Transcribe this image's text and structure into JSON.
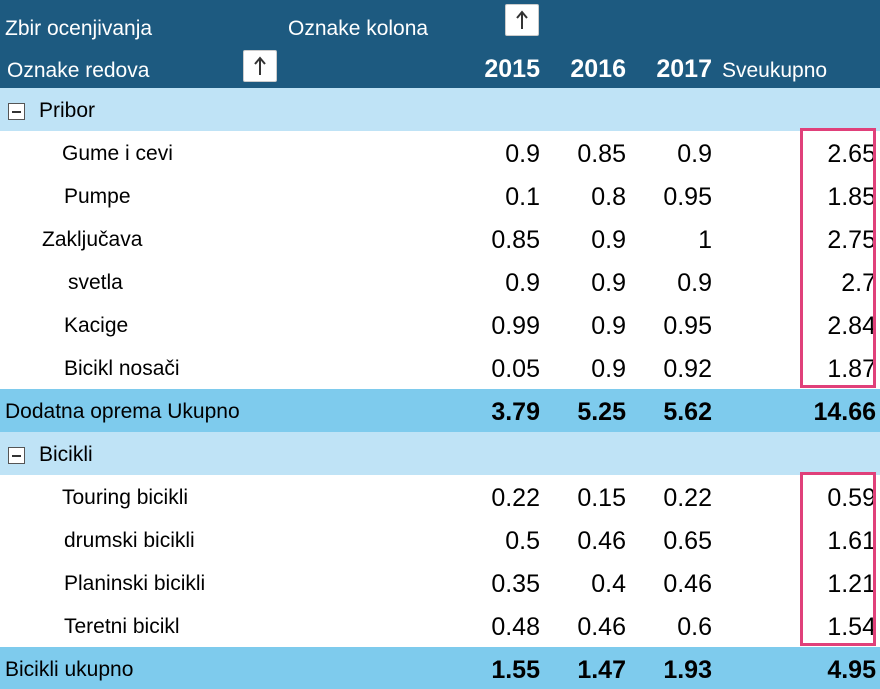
{
  "header": {
    "value_label": "Zbir ocenjivanja",
    "column_labels": "Oznake kolona",
    "row_labels": "Oznake redova",
    "years": [
      "2015",
      "2016",
      "2017"
    ],
    "grand_total": "Sveukupno"
  },
  "groups": [
    {
      "name": "Pribor",
      "rows": [
        {
          "label": "Gume i cevi",
          "values": [
            "0.9",
            "0.85",
            "0.9"
          ],
          "total": "2.65"
        },
        {
          "label": "Pumpe",
          "values": [
            "0.1",
            "0.8",
            "0.95"
          ],
          "total": "1.85"
        },
        {
          "label": "Zaključava",
          "values": [
            "0.85",
            "0.9",
            "1"
          ],
          "total": "2.75"
        },
        {
          "label": "svetla",
          "values": [
            "0.9",
            "0.9",
            "0.9"
          ],
          "total": "2.7"
        },
        {
          "label": "Kacige",
          "values": [
            "0.99",
            "0.9",
            "0.95"
          ],
          "total": "2.84"
        },
        {
          "label": "Bicikl nosači",
          "values": [
            "0.05",
            "0.9",
            "0.92"
          ],
          "total": "1.87"
        }
      ],
      "subtotal": {
        "label": "Dodatna oprema Ukupno",
        "values": [
          "3.79",
          "5.25",
          "5.62"
        ],
        "total": "14.66"
      }
    },
    {
      "name": "Bicikli",
      "rows": [
        {
          "label": "Touring bicikli",
          "values": [
            "0.22",
            "0.15",
            "0.22"
          ],
          "total": "0.59"
        },
        {
          "label": "drumski bicikli",
          "values": [
            "0.5",
            "0.46",
            "0.65"
          ],
          "total": "1.61"
        },
        {
          "label": "Planinski bicikli",
          "values": [
            "0.35",
            "0.4",
            "0.46"
          ],
          "total": "1.21"
        },
        {
          "label": "Teretni bicikl",
          "values": [
            "0.48",
            "0.46",
            "0.6"
          ],
          "total": "1.54"
        }
      ],
      "subtotal": {
        "label": "Bicikli ukupno",
        "values": [
          "1.55",
          "1.47",
          "1.93"
        ],
        "total": "4.95"
      }
    }
  ]
}
